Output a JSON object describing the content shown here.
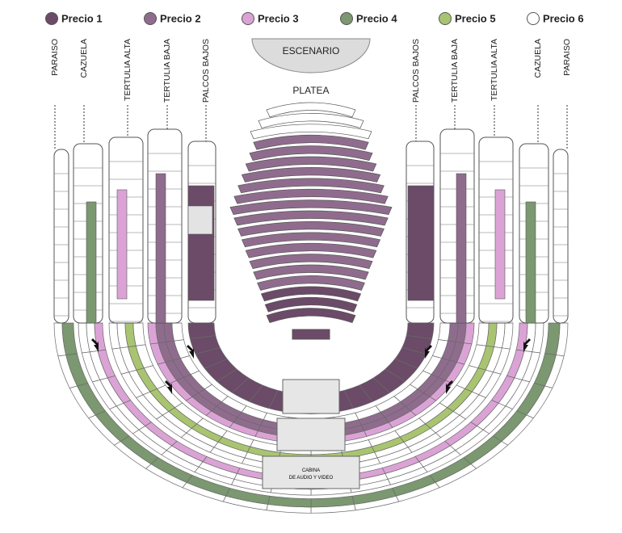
{
  "legend": [
    {
      "label": "Precio 1",
      "color": "#6b4b68"
    },
    {
      "label": "Precio 2",
      "color": "#8f6c8d"
    },
    {
      "label": "Precio 3",
      "color": "#dba3d5"
    },
    {
      "label": "Precio 4",
      "color": "#7b9870"
    },
    {
      "label": "Precio 5",
      "color": "#a9c470"
    },
    {
      "label": "Precio 6",
      "color": "#ffffff"
    }
  ],
  "stage": "ESCENARIO",
  "platea": "PLATEA",
  "left_sections": [
    "PARAISO",
    "CAZUELA",
    "TERTULIA ALTA",
    "TERTULIA BAJA",
    "PALCOS BAJOS"
  ],
  "right_sections": [
    "PALCOS BAJOS",
    "TERTULIA BAJA",
    "TERTULIA ALTA",
    "CAZUELA",
    "PARAISO"
  ],
  "booth": [
    "CABINA",
    "DE AUDIO Y VIDEO"
  ]
}
